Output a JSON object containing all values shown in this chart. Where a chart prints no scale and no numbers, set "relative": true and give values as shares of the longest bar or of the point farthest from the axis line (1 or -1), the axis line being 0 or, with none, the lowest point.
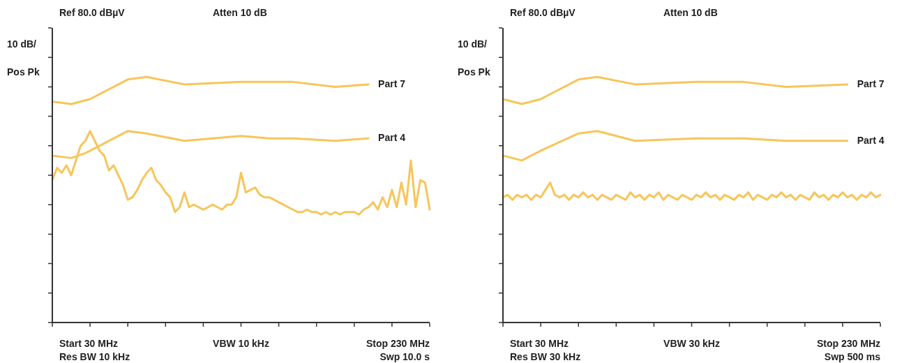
{
  "chart_data": [
    {
      "type": "line",
      "relative": true,
      "grid": false,
      "legend": false,
      "marker": "none",
      "line_style": "solid",
      "categories": [
        null,
        null,
        null,
        null,
        null,
        null,
        null,
        null,
        null,
        null,
        null,
        null,
        null,
        null,
        null,
        null,
        null,
        null,
        null,
        null,
        null,
        null,
        null,
        null,
        null,
        null,
        null,
        null,
        null,
        null,
        null,
        null,
        null,
        null,
        null,
        null,
        null,
        null,
        null,
        null,
        null,
        null,
        null,
        null,
        null,
        null,
        null,
        null,
        null,
        null,
        null,
        null,
        null,
        null,
        null,
        null,
        null,
        null,
        null,
        null,
        null,
        null,
        null,
        null,
        null,
        null,
        null,
        null,
        null,
        null,
        null,
        null,
        null,
        null,
        null,
        null,
        null,
        null,
        null,
        null,
        null
      ],
      "annotations": [
        "Ref 80.0 dBµV",
        "Atten 10 dB",
        "10 dB/",
        "Pos Pk",
        "Start 30 MHz",
        "VBW 10 kHz",
        "Stop 230 MHz",
        "Res BW 10 kHz",
        "Swp 10.0 s"
      ],
      "series": [
        {
          "name": "Part 7",
          "color": "#f7c55a",
          "values": [
            0.9,
            null,
            null,
            null,
            0.89,
            null,
            null,
            null,
            0.91,
            null,
            null,
            null,
            null,
            null,
            null,
            null,
            0.99,
            null,
            null,
            null,
            1.0,
            null,
            null,
            null,
            null,
            null,
            null,
            null,
            0.97,
            null,
            null,
            null,
            null,
            null,
            null,
            null,
            null,
            null,
            null,
            null,
            0.98,
            null,
            null,
            null,
            null,
            null,
            0.98,
            null,
            null,
            null,
            null,
            0.98,
            null,
            null,
            null,
            null,
            null,
            null,
            null,
            null,
            0.96,
            null,
            null,
            null,
            null,
            null,
            null,
            0.97,
            null,
            null,
            null,
            null,
            null,
            null,
            null,
            null,
            null,
            null,
            null,
            null,
            null
          ]
        },
        {
          "name": "Part 4",
          "color": "#f7c55a",
          "values": [
            0.68,
            null,
            null,
            null,
            0.67,
            null,
            null,
            0.69,
            null,
            null,
            0.72,
            null,
            null,
            null,
            null,
            null,
            0.78,
            null,
            null,
            null,
            0.77,
            null,
            null,
            null,
            null,
            null,
            null,
            null,
            0.74,
            null,
            null,
            null,
            null,
            null,
            null,
            null,
            null,
            null,
            null,
            null,
            0.76,
            null,
            null,
            null,
            null,
            null,
            0.75,
            null,
            null,
            null,
            null,
            0.75,
            null,
            null,
            null,
            null,
            null,
            null,
            null,
            null,
            0.74,
            null,
            null,
            null,
            null,
            null,
            null,
            0.75,
            null,
            null,
            null,
            null,
            null,
            null,
            null,
            null,
            null,
            null,
            null,
            null,
            null
          ]
        },
        {
          "color": "#f7c55a",
          "values": [
            0.58,
            0.63,
            0.61,
            0.64,
            0.6,
            0.66,
            0.72,
            0.74,
            0.78,
            0.74,
            0.7,
            0.68,
            0.62,
            0.64,
            0.6,
            0.56,
            0.5,
            0.51,
            0.54,
            0.58,
            0.61,
            0.63,
            0.58,
            0.56,
            0.53,
            0.51,
            0.45,
            0.47,
            0.53,
            0.47,
            0.48,
            0.47,
            0.46,
            0.47,
            0.48,
            0.47,
            0.46,
            0.48,
            0.48,
            0.51,
            0.61,
            0.53,
            0.54,
            0.55,
            0.52,
            0.51,
            0.51,
            0.5,
            0.49,
            0.48,
            0.47,
            0.46,
            0.45,
            0.45,
            0.46,
            0.45,
            0.45,
            0.44,
            0.45,
            0.44,
            0.45,
            0.44,
            0.45,
            0.45,
            0.45,
            0.44,
            0.46,
            0.47,
            0.49,
            0.46,
            0.51,
            0.47,
            0.54,
            0.47,
            0.57,
            0.48,
            0.66,
            0.47,
            0.58,
            0.57,
            0.46
          ]
        }
      ]
    },
    {
      "type": "line",
      "relative": true,
      "grid": false,
      "legend": false,
      "marker": "none",
      "line_style": "solid",
      "categories": [
        null,
        null,
        null,
        null,
        null,
        null,
        null,
        null,
        null,
        null,
        null,
        null,
        null,
        null,
        null,
        null,
        null,
        null,
        null,
        null,
        null,
        null,
        null,
        null,
        null,
        null,
        null,
        null,
        null,
        null,
        null,
        null,
        null,
        null,
        null,
        null,
        null,
        null,
        null,
        null,
        null,
        null,
        null,
        null,
        null,
        null,
        null,
        null,
        null,
        null,
        null,
        null,
        null,
        null,
        null,
        null,
        null,
        null,
        null,
        null,
        null,
        null,
        null,
        null,
        null,
        null,
        null,
        null,
        null,
        null,
        null,
        null,
        null,
        null,
        null,
        null,
        null,
        null,
        null,
        null,
        null
      ],
      "annotations": [
        "Ref 80.0 dBµV",
        "Atten 10 dB",
        "10 dB/",
        "Pos Pk",
        "Start 30 MHz",
        "VBW 30 kHz",
        "Stop 230 MHz",
        "Res BW 30 kHz",
        "Swp 500 ms"
      ],
      "series": [
        {
          "name": "Part 7",
          "color": "#f7c55a",
          "values": [
            0.91,
            null,
            null,
            null,
            0.89,
            null,
            null,
            null,
            0.91,
            null,
            null,
            null,
            null,
            null,
            null,
            null,
            0.99,
            null,
            null,
            null,
            1.0,
            null,
            null,
            null,
            null,
            null,
            null,
            null,
            0.97,
            null,
            null,
            null,
            null,
            null,
            null,
            null,
            null,
            null,
            null,
            null,
            null,
            0.98,
            null,
            null,
            null,
            null,
            null,
            null,
            null,
            null,
            null,
            0.98,
            null,
            null,
            null,
            null,
            null,
            null,
            null,
            null,
            0.96,
            null,
            null,
            null,
            null,
            null,
            null,
            null,
            null,
            null,
            null,
            null,
            null,
            0.97,
            null,
            null,
            null,
            null,
            null,
            null,
            null
          ]
        },
        {
          "name": "Part 4",
          "color": "#f7c55a",
          "values": [
            0.68,
            null,
            null,
            null,
            0.66,
            null,
            null,
            null,
            0.7,
            null,
            null,
            null,
            null,
            null,
            null,
            null,
            0.77,
            null,
            null,
            null,
            0.78,
            null,
            null,
            null,
            null,
            null,
            null,
            null,
            0.74,
            null,
            null,
            null,
            null,
            null,
            null,
            null,
            null,
            null,
            null,
            null,
            null,
            0.75,
            null,
            null,
            null,
            null,
            null,
            null,
            null,
            null,
            null,
            0.75,
            null,
            null,
            null,
            null,
            null,
            null,
            null,
            null,
            0.74,
            null,
            null,
            null,
            null,
            null,
            null,
            null,
            null,
            null,
            null,
            null,
            null,
            0.74,
            null,
            null,
            null,
            null,
            null,
            null,
            null
          ]
        },
        {
          "color": "#f7c55a",
          "values": [
            0.51,
            0.52,
            0.5,
            0.52,
            0.51,
            0.52,
            0.5,
            0.52,
            0.51,
            0.54,
            0.57,
            0.52,
            0.51,
            0.52,
            0.5,
            0.52,
            0.51,
            0.53,
            0.51,
            0.52,
            0.5,
            0.52,
            0.51,
            0.5,
            0.52,
            0.51,
            0.5,
            0.53,
            0.51,
            0.52,
            0.5,
            0.52,
            0.51,
            0.53,
            0.5,
            0.52,
            0.51,
            0.5,
            0.52,
            0.51,
            0.5,
            0.52,
            0.51,
            0.53,
            0.51,
            0.52,
            0.5,
            0.52,
            0.51,
            0.5,
            0.52,
            0.51,
            0.53,
            0.5,
            0.52,
            0.51,
            0.5,
            0.52,
            0.51,
            0.53,
            0.51,
            0.52,
            0.5,
            0.52,
            0.51,
            0.5,
            0.53,
            0.51,
            0.52,
            0.5,
            0.52,
            0.51,
            0.53,
            0.51,
            0.52,
            0.5,
            0.52,
            0.51,
            0.53,
            0.51,
            0.52
          ]
        }
      ]
    }
  ]
}
